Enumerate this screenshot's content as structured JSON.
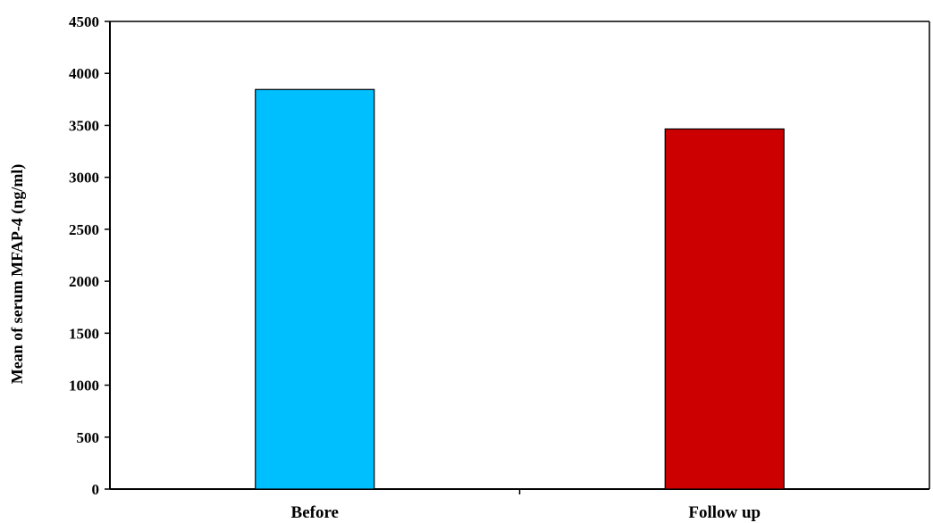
{
  "chart_data": {
    "type": "bar",
    "title": "",
    "xlabel": "",
    "ylabel": "Mean of serum MFAP-4  (ng/ml)",
    "categories": [
      "Before",
      "Follow up"
    ],
    "values": [
      3845,
      3465
    ],
    "colors": [
      "#00BFFF",
      "#CC0000"
    ],
    "ylim": [
      0,
      4500
    ],
    "yticks": [
      "0",
      "500",
      "1000",
      "1500",
      "2000",
      "2500",
      "3000",
      "3500",
      "4000",
      "4500"
    ],
    "grid": false,
    "legend": "none"
  }
}
